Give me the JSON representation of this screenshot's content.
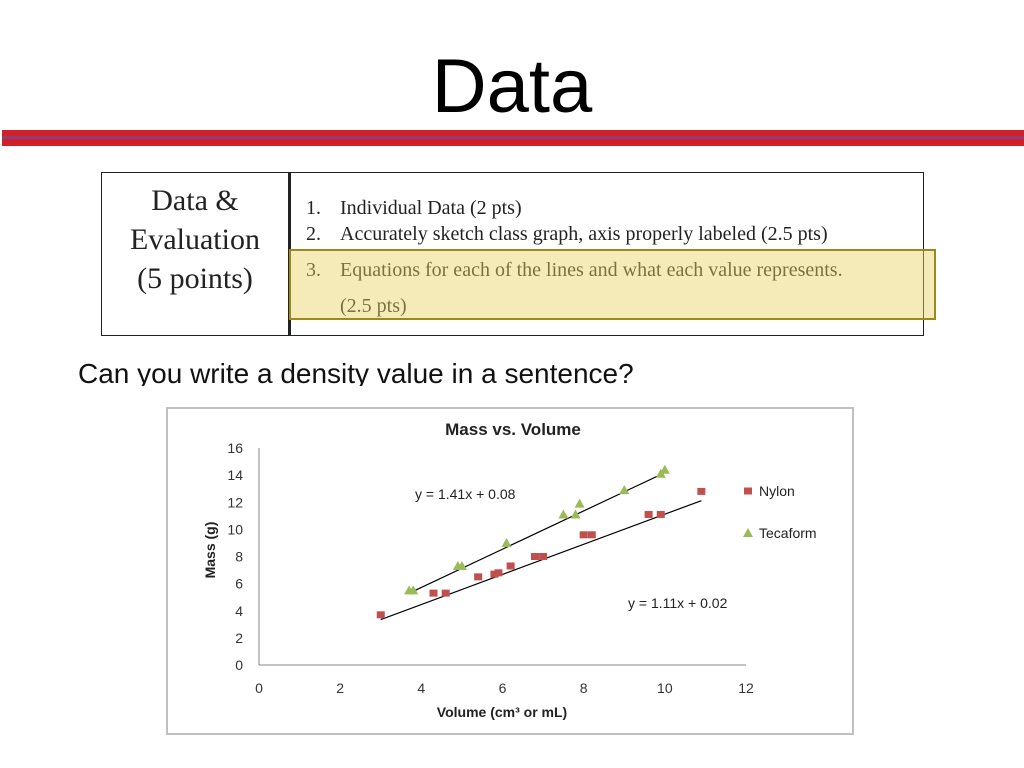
{
  "slide": {
    "title": "Data",
    "question": "Can you write a density value in a sentence?"
  },
  "rubric": {
    "heading_lines": [
      "Data &",
      "Evaluation",
      "(5 points)"
    ],
    "items": [
      {
        "num": "1.",
        "text": "Individual Data (2 pts)"
      },
      {
        "num": "2.",
        "text": "Accurately sketch class graph, axis properly labeled (2.5 pts)"
      },
      {
        "num": "3.",
        "text": "Equations for each of the lines and what each value represents."
      },
      {
        "num": "",
        "text": "(2.5 pts)"
      }
    ],
    "highlight_color": "#e8d264"
  },
  "chart_data": {
    "type": "scatter",
    "title": "Mass vs. Volume",
    "xlabel": "Volume (cm³ or mL)",
    "ylabel": "Mass (g)",
    "xlim": [
      0,
      12
    ],
    "ylim": [
      0,
      16
    ],
    "xticks": [
      0,
      2,
      4,
      6,
      8,
      10,
      12
    ],
    "yticks": [
      0,
      2,
      4,
      6,
      8,
      10,
      12,
      14,
      16
    ],
    "grid": false,
    "legend_position": "right",
    "series": [
      {
        "name": "Nylon",
        "marker": "square",
        "color": "#c0504d",
        "x": [
          3.0,
          4.3,
          4.6,
          5.4,
          5.8,
          5.9,
          6.2,
          6.8,
          7.0,
          8.0,
          8.2,
          9.6,
          9.9,
          10.9
        ],
        "y": [
          3.7,
          5.3,
          5.3,
          6.5,
          6.7,
          6.8,
          7.3,
          8.0,
          8.0,
          9.6,
          9.6,
          11.1,
          11.1,
          12.8
        ],
        "trendline": {
          "slope": 1.11,
          "intercept": 0.02,
          "x_range": [
            3.0,
            10.9
          ],
          "label": "y = 1.11x + 0.02"
        }
      },
      {
        "name": "Tecaform",
        "marker": "triangle",
        "color": "#9bbb59",
        "x": [
          3.7,
          3.8,
          4.9,
          5.0,
          6.1,
          7.5,
          7.8,
          7.9,
          9.0,
          9.9,
          10.0
        ],
        "y": [
          5.5,
          5.5,
          7.3,
          7.3,
          9.0,
          11.1,
          11.1,
          11.9,
          12.9,
          14.1,
          14.4
        ],
        "trendline": {
          "slope": 1.41,
          "intercept": 0.08,
          "x_range": [
            3.7,
            10.0
          ],
          "label": "y = 1.41x + 0.08"
        }
      }
    ]
  }
}
